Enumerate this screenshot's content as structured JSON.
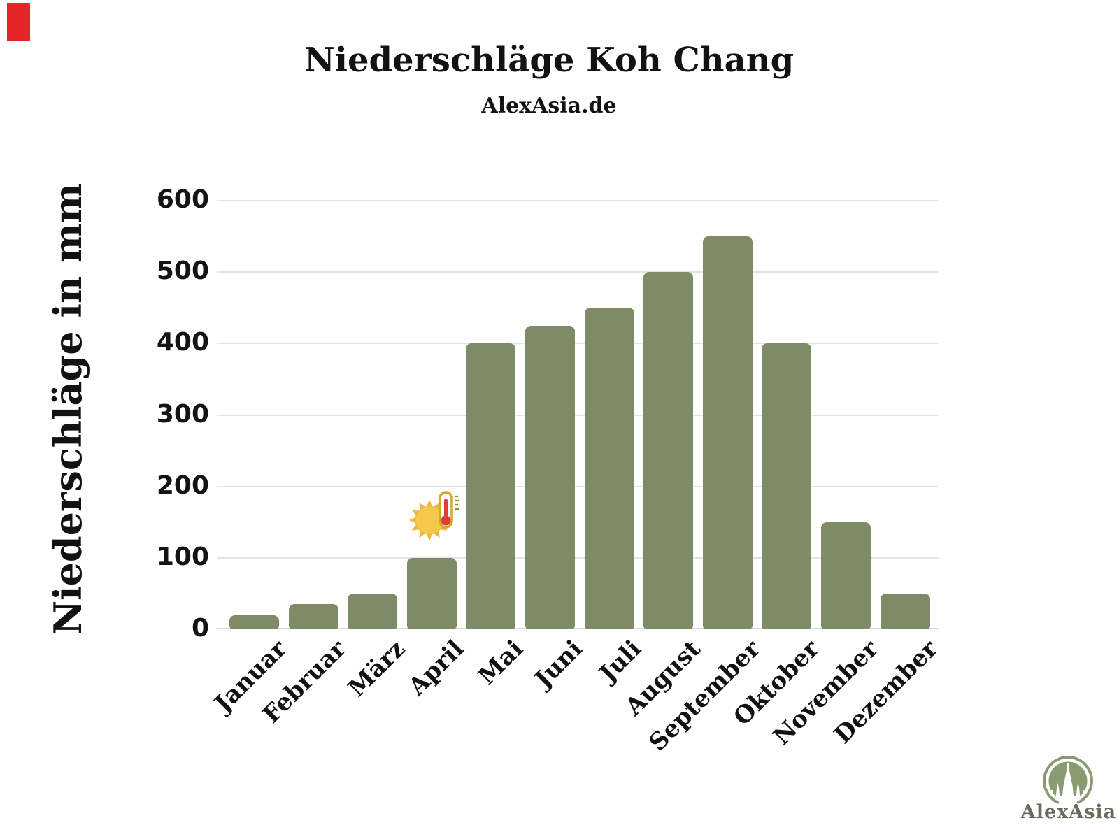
{
  "header": {
    "title": "Niederschläge Koh Chang",
    "subtitle": "AlexAsia.de"
  },
  "chart_data": {
    "type": "bar",
    "title": "Niederschläge Koh Chang",
    "subtitle": "AlexAsia.de",
    "categories": [
      "Januar",
      "Februar",
      "März",
      "April",
      "Mai",
      "Juni",
      "Juli",
      "August",
      "September",
      "Oktober",
      "November",
      "Dezember"
    ],
    "values": [
      20,
      35,
      50,
      100,
      400,
      425,
      450,
      500,
      550,
      400,
      150,
      50
    ],
    "xlabel": "",
    "ylabel": "Niederschläge in mm",
    "ylim": [
      0,
      600
    ],
    "yticks": [
      0,
      100,
      200,
      300,
      400,
      500,
      600
    ],
    "grid": true,
    "legend_position": "none",
    "bar_color": "#7d8b67",
    "annotation": {
      "icon": "sun-thermometer",
      "above_category": "April"
    }
  },
  "logo": {
    "text": "AlexAsia"
  },
  "colors": {
    "background": "#ffffff",
    "bar": "#7d8b67",
    "gridline": "#e4e4e2",
    "axis_line": "#d8d8d6",
    "text": "#141414",
    "logo_green": "#8a9b72",
    "logo_text": "#666c5c",
    "corner_mark": "#e52528"
  }
}
